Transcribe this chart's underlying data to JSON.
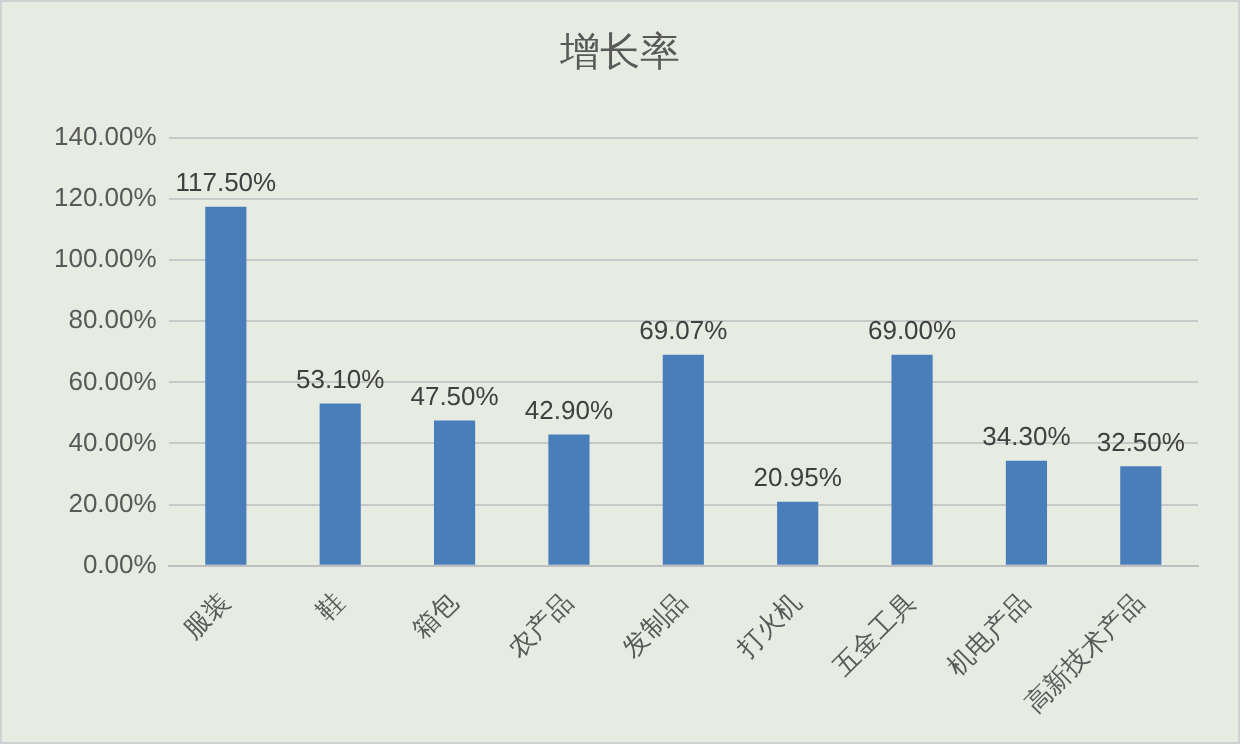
{
  "chart_data": {
    "type": "bar",
    "title": "增长率",
    "categories": [
      "服装",
      "鞋",
      "箱包",
      "农产品",
      "发制品",
      "打火机",
      "五金工具",
      "机电产品",
      "高新技术产品"
    ],
    "values": [
      117.5,
      53.1,
      47.5,
      42.9,
      69.07,
      20.95,
      69.0,
      34.3,
      32.5
    ],
    "value_labels": [
      "117.50%",
      "53.10%",
      "47.50%",
      "42.90%",
      "69.07%",
      "20.95%",
      "69.00%",
      "34.30%",
      "32.50%"
    ],
    "color": "#4a7ebb",
    "ylim": [
      0,
      140
    ],
    "yticks": [
      {
        "value": 0,
        "label": "0.00%"
      },
      {
        "value": 20,
        "label": "20.00%"
      },
      {
        "value": 40,
        "label": "40.00%"
      },
      {
        "value": 60,
        "label": "60.00%"
      },
      {
        "value": 80,
        "label": "80.00%"
      },
      {
        "value": 100,
        "label": "100.00%"
      },
      {
        "value": 120,
        "label": "120.00%"
      },
      {
        "value": 140,
        "label": "140.00%"
      }
    ],
    "grid": "y",
    "legend": false
  }
}
